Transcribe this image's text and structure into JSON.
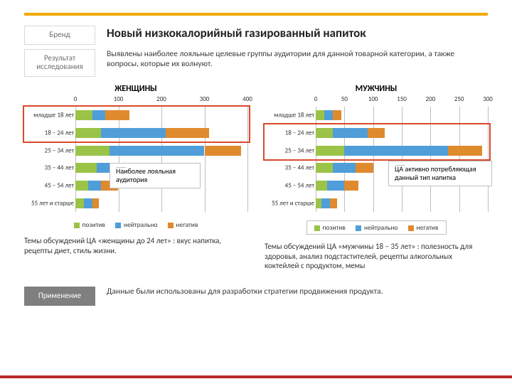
{
  "accent_top": "#f2a900",
  "accent_bottom": "#bb2a2a",
  "labels": {
    "brand": "Бренд",
    "result": "Результат исследования",
    "application": "Применение"
  },
  "title": "Новый низкокалорийный газированный напиток",
  "result_text": "Выявлены наиболее лояльные целевые группы аудитории для данной товарной категории, а также вопросы, которые их волнуют.",
  "application_text": "Данные были использованы для разработки стратегии продвижения продукта.",
  "colors": {
    "pos": "#9bc348",
    "neu": "#4f9ed9",
    "neg": "#e08a2e",
    "grid": "#bfbfbf"
  },
  "legend": {
    "pos": "позитив",
    "neu": "нейтрально",
    "neg": "негатив"
  },
  "categories": [
    "младше 18 лет",
    "18 – 24 лет",
    "25 – 34 лет",
    "35 – 44 лет",
    "45 – 54 лет",
    "55 лет и старше"
  ],
  "women": {
    "title": "ЖЕНЩИНЫ",
    "max": 400,
    "tick_step": 100,
    "data": [
      {
        "pos": 40,
        "neu": 30,
        "neg": 55
      },
      {
        "pos": 60,
        "neu": 150,
        "neg": 100
      },
      {
        "pos": 80,
        "neu": 220,
        "neg": 85
      },
      {
        "pos": 50,
        "neu": 40,
        "neg": 50
      },
      {
        "pos": 30,
        "neu": 30,
        "neg": 40
      },
      {
        "pos": 20,
        "neu": 20,
        "neg": 15
      }
    ],
    "highlight_rows": [
      0,
      1
    ],
    "callout": "Наиболее лояльная аудитория",
    "discussion": "Темы обсуждений ЦА «женщины до 24 лет» : вкус напитка, рецепты диет, стиль жизни."
  },
  "men": {
    "title": "МУЖЧИНЫ",
    "max": 300,
    "tick_step": 50,
    "data": [
      {
        "pos": 15,
        "neu": 15,
        "neg": 15
      },
      {
        "pos": 30,
        "neu": 60,
        "neg": 30
      },
      {
        "pos": 50,
        "neu": 180,
        "neg": 60
      },
      {
        "pos": 30,
        "neu": 40,
        "neg": 30
      },
      {
        "pos": 20,
        "neu": 30,
        "neg": 25
      },
      {
        "pos": 10,
        "neu": 15,
        "neg": 12
      }
    ],
    "highlight_rows": [
      1,
      2
    ],
    "callout": "ЦА активно потребляющая данный тип напитка",
    "discussion": "Темы обсуждений ЦА «мужчины 18 – 35 лет» : полезность для здоровья, анализ подстастителей, рецепты алкогольных коктейлей с продуктом, мемы"
  }
}
